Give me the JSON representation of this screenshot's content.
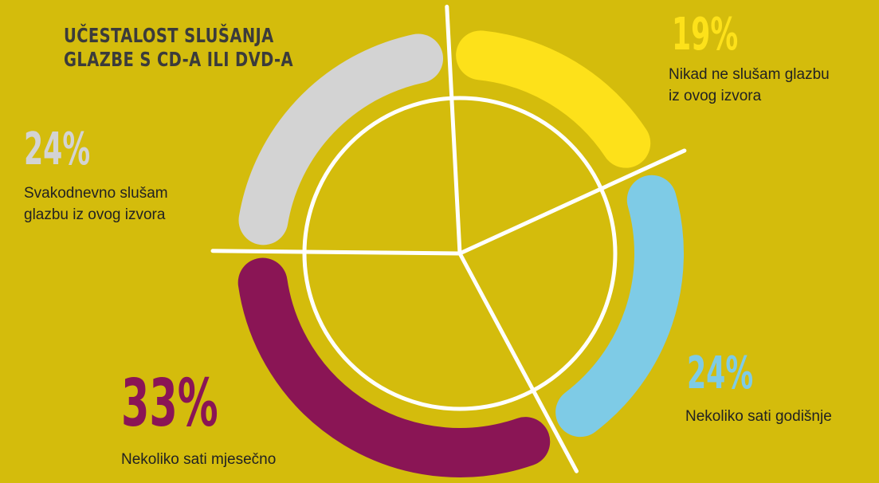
{
  "title": {
    "line1": "Učestalost slušanja",
    "line2": "glazbe s CD-a ili DVD-a"
  },
  "chart_data": {
    "type": "pie",
    "title": "Učestalost slušanja glazbe s CD-a ili DVD-a",
    "slices": [
      {
        "label": "Nikad ne slušam glazbu iz ovog izvora",
        "value": 19,
        "value_label": "19%",
        "color": "#fde11a"
      },
      {
        "label": "Nekoliko sati godišnje",
        "value": 24,
        "value_label": "24%",
        "color": "#7ecbe6"
      },
      {
        "label": "Nekoliko sati mjesečno",
        "value": 33,
        "value_label": "33%",
        "color": "#8a1555"
      },
      {
        "label": "Svakodnevno slušam glazbu iz ovog izvora",
        "value": 24,
        "value_label": "24%",
        "color": "#d3d3d3"
      }
    ]
  },
  "labels": {
    "s0": {
      "pct": "19%",
      "line1": "Nikad ne slušam glazbu",
      "line2": "iz ovog izvora"
    },
    "s1": {
      "pct": "24%",
      "line1": "Nekoliko sati godišnje"
    },
    "s2": {
      "pct": "33%",
      "line1": "Nekoliko sati mjesečno"
    },
    "s3": {
      "pct": "24%",
      "line1": "Svakodnevno slušam",
      "line2": "glazbu iz ovog izvora"
    }
  },
  "colors": {
    "background": "#d4bc0c",
    "title_text": "#3b3b3b",
    "divider": "#ffffff"
  }
}
